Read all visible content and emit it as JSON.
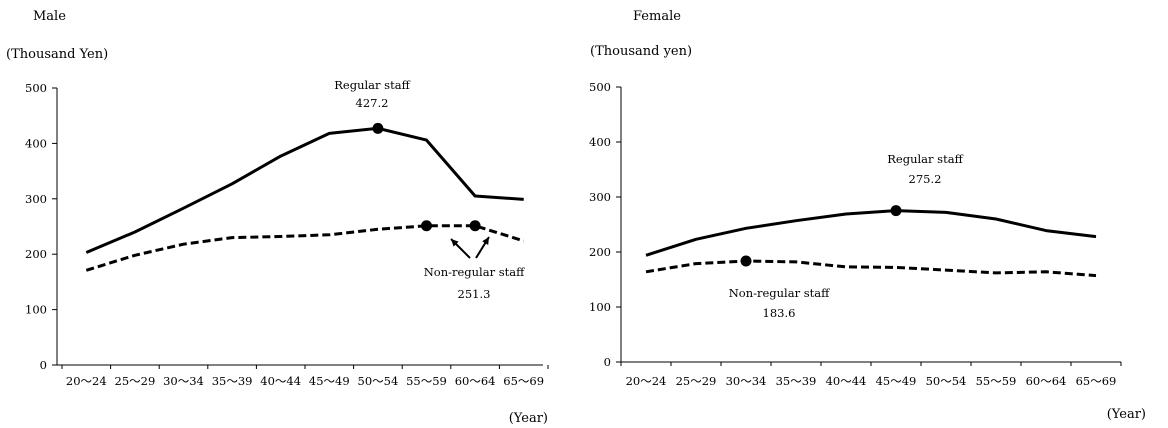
{
  "chart_data": [
    {
      "type": "line",
      "title": "Male",
      "ylabel": "(Thousand Yen)",
      "xlabel": "(Year)",
      "ylim": [
        0,
        500
      ],
      "yticks": [
        0,
        100,
        200,
        300,
        400,
        500
      ],
      "grid": false,
      "categories": [
        "20～24",
        "25～29",
        "30～34",
        "35～39",
        "40～44",
        "45～49",
        "50～54",
        "55～59",
        "60～64",
        "65～69"
      ],
      "series": [
        {
          "name": "Regular staff",
          "style": "solid",
          "values": [
            203,
            240,
            283,
            327,
            377,
            418,
            427.2,
            406,
            305,
            299
          ]
        },
        {
          "name": "Non-regular staff",
          "style": "dashed",
          "values": [
            171,
            198,
            218,
            230,
            232,
            235,
            245,
            251.3,
            251.3,
            224
          ]
        }
      ],
      "annotations": [
        {
          "label": "Regular staff",
          "value": "427.2",
          "series": 0,
          "index": 6
        },
        {
          "label": "Non-regular staff",
          "value": "251.3",
          "series": 1,
          "index": 7
        },
        {
          "series": 1,
          "index": 8
        }
      ]
    },
    {
      "type": "line",
      "title": "Female",
      "ylabel": "(Thousand yen)",
      "xlabel": "(Year)",
      "ylim": [
        0,
        500
      ],
      "yticks": [
        0,
        100,
        200,
        300,
        400,
        500
      ],
      "grid": false,
      "categories": [
        "20～24",
        "25～29",
        "30～34",
        "35～39",
        "40～44",
        "45～49",
        "50～54",
        "55～59",
        "60～64",
        "65～69"
      ],
      "series": [
        {
          "name": "Regular staff",
          "style": "solid",
          "values": [
            194,
            223,
            243,
            257,
            269,
            275.2,
            272,
            260,
            239,
            228
          ]
        },
        {
          "name": "Non-regular staff",
          "style": "dashed",
          "values": [
            164,
            179,
            183.6,
            182,
            173,
            172,
            167,
            162,
            164,
            157
          ]
        }
      ],
      "annotations": [
        {
          "label": "Regular staff",
          "value": "275.2",
          "series": 0,
          "index": 5
        },
        {
          "label": "Non-regular staff",
          "value": "183.6",
          "series": 1,
          "index": 2
        }
      ]
    }
  ]
}
